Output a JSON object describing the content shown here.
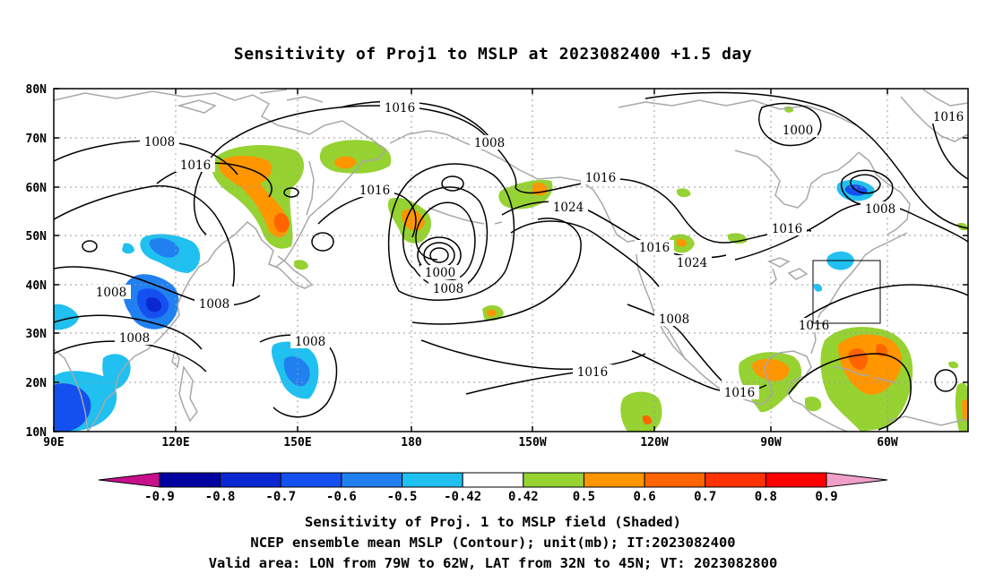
{
  "title": "Sensitivity of Proj1 to MSLP at 2023082400 +1.5 day",
  "map": {
    "lat_labels": [
      "80N",
      "70N",
      "60N",
      "50N",
      "40N",
      "30N",
      "20N",
      "10N"
    ],
    "lon_labels": [
      "90E",
      "120E",
      "150E",
      "180",
      "150W",
      "120W",
      "90W",
      "60W"
    ],
    "lon_range": [
      "90E",
      "50W"
    ],
    "lat_range": [
      "10N",
      "80N"
    ],
    "grid": "dotted",
    "valid_box": {
      "lon": [
        "79W",
        "62W"
      ],
      "lat": [
        "32N",
        "45N"
      ]
    }
  },
  "contour_labels": [
    {
      "id": "c1",
      "text": "1016"
    },
    {
      "id": "c2",
      "text": "1008"
    },
    {
      "id": "c3",
      "text": "1016"
    },
    {
      "id": "c4",
      "text": "1016"
    },
    {
      "id": "c5",
      "text": "1008"
    },
    {
      "id": "c6",
      "text": "1008"
    },
    {
      "id": "c7",
      "text": "1008"
    },
    {
      "id": "c8",
      "text": "1008"
    },
    {
      "id": "c9",
      "text": "1008"
    },
    {
      "id": "c10",
      "text": "1016"
    },
    {
      "id": "c11",
      "text": "1024"
    },
    {
      "id": "c12",
      "text": "1000"
    },
    {
      "id": "c13",
      "text": "1008"
    },
    {
      "id": "c14",
      "text": "1016"
    },
    {
      "id": "c15",
      "text": "1024"
    },
    {
      "id": "c16",
      "text": "1008"
    },
    {
      "id": "c17",
      "text": "1016"
    },
    {
      "id": "c18",
      "text": "1016"
    },
    {
      "id": "c19",
      "text": "1000"
    },
    {
      "id": "c20",
      "text": "1016"
    },
    {
      "id": "c21",
      "text": "1008"
    },
    {
      "id": "c22",
      "text": "1016"
    },
    {
      "id": "c23",
      "text": "1016"
    }
  ],
  "colorbar": {
    "labels": [
      "-0.9",
      "-0.8",
      "-0.7",
      "-0.6",
      "-0.5",
      "-0.42",
      "0.42",
      "0.5",
      "0.6",
      "0.7",
      "0.8",
      "0.9"
    ],
    "colors": [
      "#c8108c",
      "#0000a0",
      "#0a28d2",
      "#1450f0",
      "#2080f0",
      "#20c0f0",
      "#ffffff",
      "#96d232",
      "#ff9600",
      "#ff6400",
      "#ff3200",
      "#ff0000",
      "#f0a0c8"
    ]
  },
  "captions": [
    "Sensitivity of Proj. 1 to MSLP field (Shaded)",
    "NCEP ensemble mean MSLP (Contour); unit(mb); IT:2023082400",
    "Valid area: LON from 79W to 62W, LAT from 32N to 45N; VT: 2023082800"
  ]
}
